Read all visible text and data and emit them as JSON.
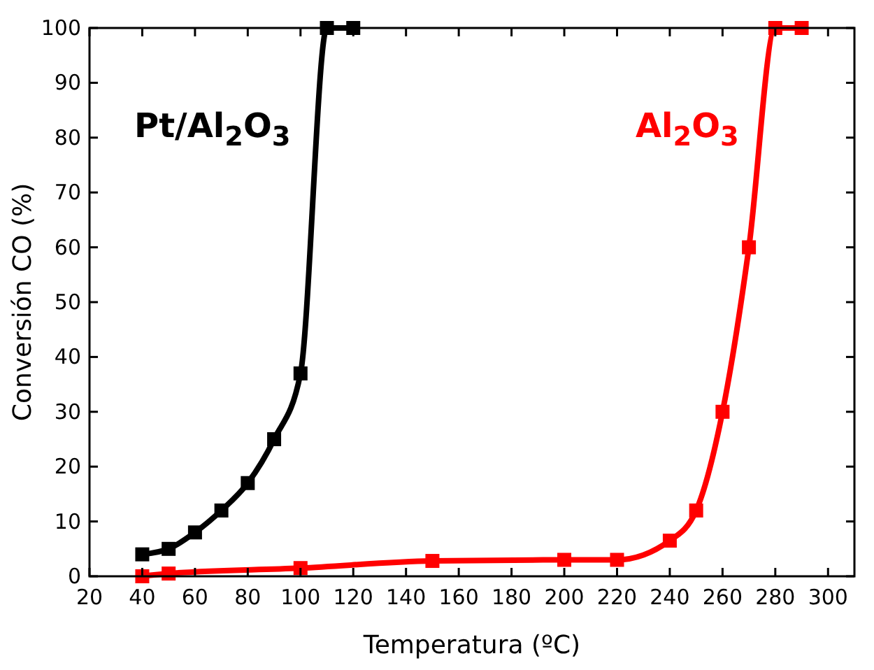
{
  "chart_data": {
    "type": "line",
    "xlabel": "Temperatura (ºC)",
    "ylabel": "Conversión CO (%)",
    "xlim": [
      20,
      310
    ],
    "xticks": [
      20,
      40,
      60,
      80,
      100,
      120,
      140,
      160,
      180,
      200,
      220,
      240,
      260,
      280,
      300
    ],
    "ylim": [
      0,
      100
    ],
    "yticks": [
      0,
      10,
      20,
      30,
      40,
      50,
      60,
      70,
      80,
      90,
      100
    ],
    "grid": false,
    "marker": "square",
    "line_style": "solid",
    "series": [
      {
        "name": "Pt/Al$_{2}$O$_{3}$",
        "color": "#000000",
        "x": [
          40,
          50,
          60,
          70,
          80,
          90,
          100,
          110,
          120
        ],
        "values": [
          4,
          5,
          8,
          12,
          17,
          25,
          37,
          100,
          100
        ]
      },
      {
        "name": "Al$_{2}$O$_{3}$",
        "color": "#ff0000",
        "x": [
          40,
          50,
          100,
          150,
          200,
          220,
          240,
          250,
          260,
          270,
          280,
          290
        ],
        "values": [
          0,
          0.5,
          1.5,
          2.8,
          3,
          3,
          6.5,
          12,
          30,
          60,
          100,
          100
        ]
      }
    ]
  }
}
